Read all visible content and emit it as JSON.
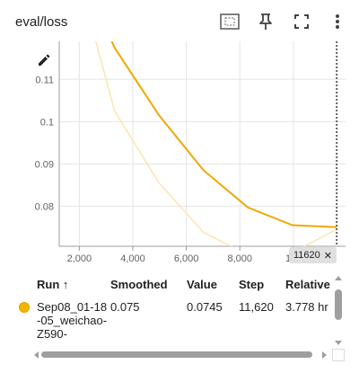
{
  "card": {
    "title": "eval/loss",
    "toolbar": {
      "fit_icon": "fit-domain-icon",
      "pin_icon": "pin-icon",
      "fullscreen_icon": "fullscreen-icon",
      "more_icon": "more-vert-icon"
    }
  },
  "chart_data": {
    "type": "line",
    "title": "eval/loss",
    "xlabel": "",
    "ylabel": "",
    "x_tick_labels": [
      "2,000",
      "4,000",
      "6,000",
      "8,000",
      "10k"
    ],
    "x_ticks": [
      2000,
      4000,
      6000,
      8000,
      10000
    ],
    "y_tick_labels": [
      "0.08",
      "0.09",
      "0.1",
      "0.11"
    ],
    "y_ticks": [
      0.08,
      0.09,
      0.1,
      0.11
    ],
    "xlim": [
      1250,
      11950
    ],
    "ylim": [
      0.0705,
      0.119
    ],
    "grid": true,
    "series": [
      {
        "name": "Sep08_01-18-05_weichao-Z590-",
        "role": "raw",
        "color": "#fde6b3",
        "x": [
          1660,
          3320,
          4980,
          6640,
          8300,
          9960,
          11620
        ],
        "y": [
          0.1415,
          0.1025,
          0.0855,
          0.0738,
          0.0685,
          0.069,
          0.0745
        ]
      },
      {
        "name": "Sep08_01-18-05_weichao-Z590-",
        "role": "smoothed",
        "color": "#f1a800",
        "x": [
          1660,
          3320,
          4980,
          6640,
          8300,
          9960,
          11620
        ],
        "y": [
          0.1415,
          0.1175,
          0.1015,
          0.0885,
          0.0797,
          0.0755,
          0.075
        ]
      }
    ],
    "cursor_step": 11620,
    "cursor_label": "11620"
  },
  "table": {
    "headers": {
      "run": "Run ↑",
      "smoothed": "Smoothed",
      "value": "Value",
      "step": "Step",
      "relative": "Relative"
    },
    "rows": [
      {
        "run": "Sep08_01-18-05_weichao-Z590-",
        "smoothed": "0.075",
        "value": "0.0745",
        "step": "11,620",
        "relative": "3.778 hr",
        "color": "#f6b400"
      }
    ]
  }
}
